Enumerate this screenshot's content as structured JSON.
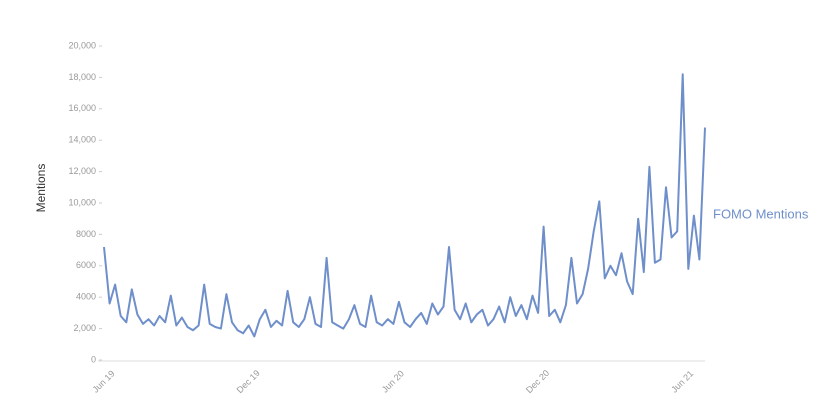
{
  "chart_data": {
    "type": "line",
    "y_label": "Mentions",
    "categories": [
      "Jun 19",
      null,
      null,
      null,
      null,
      null,
      null,
      null,
      null,
      null,
      null,
      null,
      null,
      null,
      null,
      null,
      null,
      null,
      null,
      null,
      null,
      null,
      null,
      null,
      null,
      null,
      "Dec 19",
      null,
      null,
      null,
      null,
      null,
      null,
      null,
      null,
      null,
      null,
      null,
      null,
      null,
      null,
      null,
      null,
      null,
      null,
      null,
      null,
      null,
      null,
      null,
      null,
      null,
      "Jun 20",
      null,
      null,
      null,
      null,
      null,
      null,
      null,
      null,
      null,
      null,
      null,
      null,
      null,
      null,
      null,
      null,
      null,
      null,
      null,
      null,
      null,
      null,
      null,
      null,
      null,
      "Dec 20",
      null,
      null,
      null,
      null,
      null,
      null,
      null,
      null,
      null,
      null,
      null,
      null,
      null,
      null,
      null,
      null,
      null,
      null,
      null,
      null,
      null,
      null,
      null,
      null,
      null,
      "Jun 21",
      null,
      null,
      null,
      null
    ],
    "series": [
      {
        "name": "FOMO Mentions",
        "color": "#6f8fcb",
        "values": [
          7200,
          3600,
          4800,
          2800,
          2400,
          4500,
          2900,
          2300,
          2600,
          2200,
          2800,
          2400,
          4100,
          2200,
          2700,
          2100,
          1900,
          2200,
          4800,
          2300,
          2100,
          2000,
          4200,
          2400,
          1900,
          1700,
          2200,
          1500,
          2600,
          3200,
          2100,
          2500,
          2200,
          4400,
          2400,
          2100,
          2600,
          4000,
          2300,
          2100,
          6500,
          2400,
          2200,
          2000,
          2600,
          3500,
          2300,
          2100,
          4100,
          2400,
          2200,
          2600,
          2300,
          3700,
          2400,
          2100,
          2600,
          3000,
          2300,
          3600,
          2900,
          3400,
          7200,
          3200,
          2600,
          3600,
          2400,
          2900,
          3200,
          2200,
          2600,
          3400,
          2400,
          4000,
          2800,
          3500,
          2600,
          4100,
          3000,
          8500,
          2800,
          3200,
          2400,
          3500,
          6500,
          3600,
          4200,
          5800,
          8200,
          10100,
          5200,
          6000,
          5400,
          6800,
          5000,
          4200,
          9000,
          5600,
          12300,
          6200,
          6400,
          11000,
          7800,
          8200,
          18200,
          5800,
          9200,
          6400,
          14800
        ]
      }
    ],
    "ylim": [
      0,
      20000
    ],
    "yticks": [
      0,
      {
        "value": 2000,
        "label": "2,000"
      },
      {
        "value": 4000,
        "label": "4000"
      },
      {
        "value": 6000,
        "label": "6000"
      },
      {
        "value": 8000,
        "label": "8000"
      },
      {
        "value": 10000,
        "label": "10,000"
      },
      {
        "value": 12000,
        "label": "12,000"
      },
      {
        "value": 14000,
        "label": "14,000"
      },
      {
        "value": 16000,
        "label": "16,000"
      },
      {
        "value": 18000,
        "label": "18,000"
      },
      {
        "value": 20000,
        "label": "20,000"
      }
    ],
    "grid": false
  }
}
